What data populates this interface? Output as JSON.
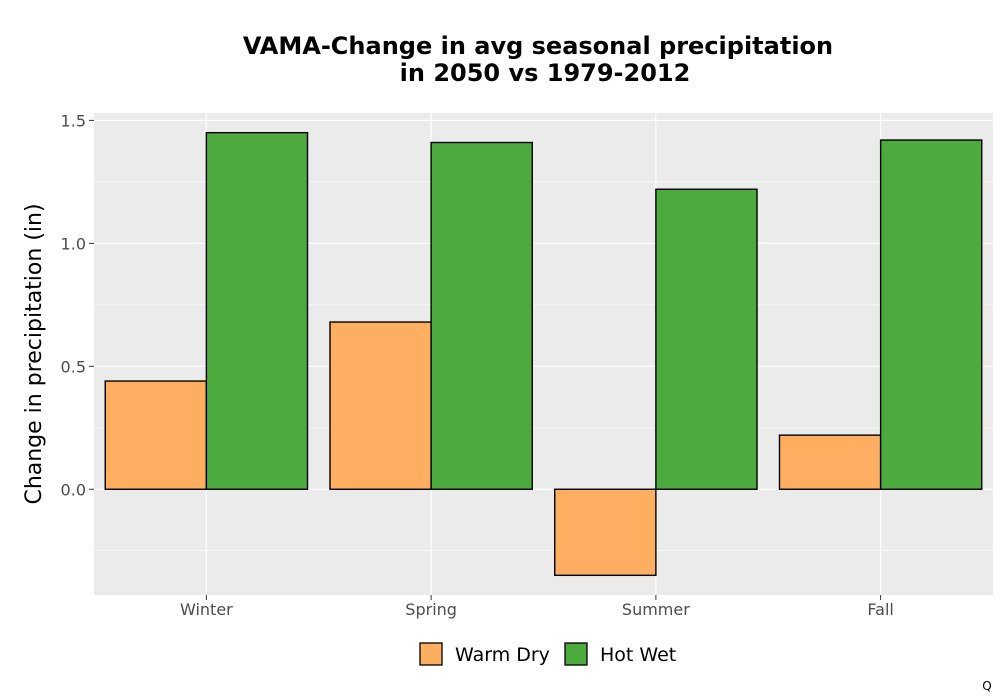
{
  "chart_data": {
    "type": "bar",
    "title_lines": [
      "VAMA-Change in avg seasonal precipitation",
      "in 2050 vs 1979-2012"
    ],
    "xlabel": "",
    "ylabel": "Change in precipitation (in)",
    "categories": [
      "Winter",
      "Spring",
      "Summer",
      "Fall"
    ],
    "series": [
      {
        "name": "Warm Dry",
        "color": "#fdae61",
        "values": [
          0.44,
          0.68,
          -0.35,
          0.22
        ]
      },
      {
        "name": "Hot Wet",
        "color": "#4daa3e",
        "values": [
          1.45,
          1.41,
          1.22,
          1.42
        ]
      }
    ],
    "ylim": [
      -0.43,
      1.53
    ],
    "yticks": [
      0.0,
      0.5,
      1.0,
      1.5
    ],
    "ytick_labels": [
      "0.0",
      "0.5",
      "1.0",
      "1.5"
    ],
    "grid": true,
    "legend_position": "bottom",
    "panel_color": "#ebebeb"
  },
  "corner_glyph": "Q"
}
